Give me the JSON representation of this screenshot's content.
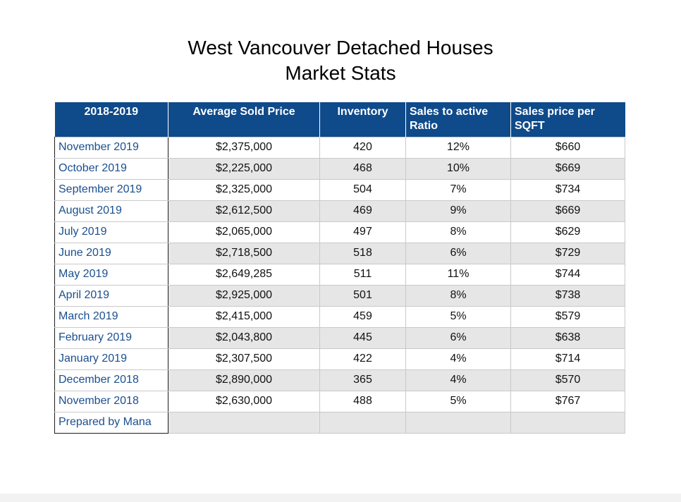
{
  "title": {
    "line1": "West Vancouver Detached Houses",
    "line2": "Market Stats"
  },
  "table": {
    "headers": [
      "2018-2019",
      "Average Sold Price",
      "Inventory",
      "Sales to active Ratio",
      "Sales price per SQFT"
    ],
    "rows": [
      [
        "November 2019",
        "$2,375,000",
        "420",
        "12%",
        "$660"
      ],
      [
        "October 2019",
        "$2,225,000",
        "468",
        "10%",
        "$669"
      ],
      [
        "September 2019",
        "$2,325,000",
        "504",
        "7%",
        "$734"
      ],
      [
        "August 2019",
        "$2,612,500",
        "469",
        "9%",
        "$669"
      ],
      [
        "July 2019",
        "$2,065,000",
        "497",
        "8%",
        "$629"
      ],
      [
        "June 2019",
        "$2,718,500",
        "518",
        "6%",
        "$729"
      ],
      [
        "May 2019",
        "$2,649,285",
        "511",
        "11%",
        "$744"
      ],
      [
        "April 2019",
        "$2,925,000",
        "501",
        "8%",
        "$738"
      ],
      [
        "March 2019",
        "$2,415,000",
        "459",
        "5%",
        "$579"
      ],
      [
        "February 2019",
        "$2,043,800",
        "445",
        "6%",
        "$638"
      ],
      [
        "January 2019",
        "$2,307,500",
        "422",
        "4%",
        "$714"
      ],
      [
        "December 2018",
        "$2,890,000",
        "365",
        "4%",
        "$570"
      ],
      [
        "November 2018",
        "$2,630,000",
        "488",
        "5%",
        "$767"
      ],
      [
        "Prepared by Mana",
        "",
        "",
        "",
        ""
      ]
    ]
  },
  "colors": {
    "header_bg": "#0f4a8a",
    "header_text": "#ffffff",
    "row_label_text": "#1a4f8f",
    "alt_row_bg": "#e6e6e6"
  }
}
